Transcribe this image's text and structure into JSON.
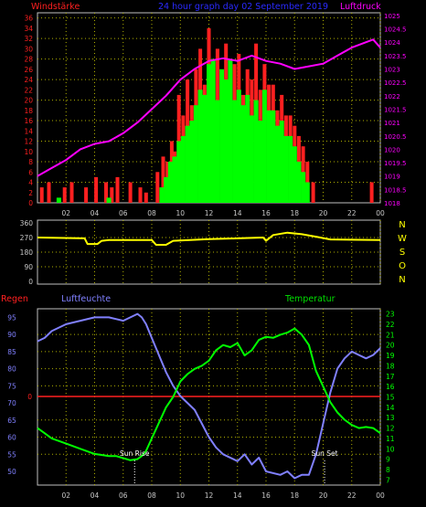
{
  "header": {
    "left_title": "Windstärke",
    "center_title": "24 hour graph day  02 September 2019",
    "right_title": "Luftdruck"
  },
  "colors": {
    "background": "#000000",
    "frame": "#c0c0c0",
    "grid": "#b0b000",
    "red": "#ff2020",
    "green": "#00ff00",
    "magenta": "#ff00ff",
    "yellow": "#ffff00",
    "blue_title": "#2a2aff",
    "humidity": "#8080ff",
    "temp_label": "#00e000",
    "label_grey": "#c8c8c8"
  },
  "x_ticks": [
    "02",
    "04",
    "06",
    "08",
    "10",
    "12",
    "14",
    "16",
    "18",
    "20",
    "22",
    "00"
  ],
  "chart_data": [
    {
      "type": "bar",
      "title": "Windstärke / Luftdruck",
      "y_left_label": "Windstärke",
      "y_left_ticks": [
        "0",
        "2",
        "4",
        "6",
        "8",
        "10",
        "12",
        "14",
        "16",
        "18",
        "20",
        "22",
        "24",
        "26",
        "28",
        "30",
        "32",
        "34",
        "36"
      ],
      "ylim_left": [
        0,
        37
      ],
      "y_right_label": "Luftdruck",
      "y_right_ticks": [
        "1018",
        "1018.5",
        "1019",
        "1019.5",
        "1020",
        "1020.5",
        "1021",
        "1021.5",
        "1022",
        "1022.5",
        "1023",
        "1023.5",
        "1024",
        "1024.5",
        "1025"
      ],
      "ylim_right": [
        1018,
        1025.1
      ],
      "xlim_hours": [
        0,
        24
      ],
      "series": [
        {
          "name": "Windspitzen",
          "color": "red",
          "hours": [
            0.3,
            0.8,
            1.9,
            2.4,
            3.4,
            4.1,
            4.8,
            5.2,
            5.6,
            6.5,
            7.2,
            7.6,
            8.4,
            8.8,
            9.1,
            9.4,
            9.6,
            9.9,
            10.2,
            10.5,
            10.8,
            11.1,
            11.4,
            11.7,
            12.0,
            12.3,
            12.6,
            12.9,
            13.2,
            13.5,
            13.8,
            14.1,
            14.4,
            14.7,
            15.0,
            15.3,
            15.6,
            15.9,
            16.2,
            16.5,
            16.8,
            17.1,
            17.4,
            17.7,
            18.0,
            18.3,
            18.6,
            18.9,
            19.3,
            23.4
          ],
          "values": [
            3,
            4,
            3,
            4,
            3,
            5,
            4,
            3,
            5,
            4,
            3,
            2,
            6,
            9,
            8,
            12,
            10,
            21,
            17,
            24,
            19,
            26,
            30,
            23,
            34,
            27,
            30,
            23,
            31,
            24,
            27,
            29,
            21,
            26,
            24,
            31,
            22,
            27,
            23,
            23,
            18,
            21,
            17,
            17,
            15,
            13,
            11,
            8,
            4,
            4
          ]
        },
        {
          "name": "Windstärke",
          "color": "green",
          "hours": [
            1.5,
            5.0,
            8.7,
            9.0,
            9.3,
            9.6,
            9.9,
            10.2,
            10.5,
            10.8,
            11.1,
            11.4,
            11.7,
            12.0,
            12.3,
            12.6,
            12.9,
            13.2,
            13.5,
            13.8,
            14.1,
            14.4,
            14.7,
            15.0,
            15.3,
            15.6,
            15.9,
            16.2,
            16.5,
            16.8,
            17.1,
            17.4,
            17.7,
            18.0,
            18.3,
            18.6,
            18.9
          ],
          "values": [
            1,
            1,
            3,
            5,
            8,
            9,
            12,
            13,
            15,
            16,
            19,
            22,
            21,
            27,
            28,
            20,
            26,
            24,
            28,
            20,
            22,
            19,
            21,
            17,
            20,
            16,
            22,
            18,
            18,
            15,
            16,
            13,
            13,
            11,
            8,
            6,
            4
          ]
        },
        {
          "name": "Luftdruck",
          "color": "magenta",
          "axis": "right",
          "hours": [
            0,
            1,
            2,
            3,
            4,
            5,
            6,
            7,
            8,
            9,
            10,
            11,
            12,
            13,
            14,
            15,
            16,
            17,
            18,
            19,
            20,
            21,
            22,
            23,
            23.5,
            24
          ],
          "values": [
            1019.0,
            1019.3,
            1019.6,
            1020.0,
            1020.2,
            1020.3,
            1020.6,
            1021.0,
            1021.5,
            1022.0,
            1022.6,
            1023.0,
            1023.3,
            1023.4,
            1023.3,
            1023.5,
            1023.3,
            1023.2,
            1023.0,
            1023.1,
            1023.2,
            1023.5,
            1023.8,
            1024.0,
            1024.1,
            1023.8
          ]
        }
      ]
    },
    {
      "type": "line",
      "title": "Windrichtung",
      "y_ticks": [
        "0",
        "90",
        "180",
        "270",
        "360"
      ],
      "ylim": [
        0,
        360
      ],
      "direction_labels": [
        "N",
        "W",
        "S",
        "O",
        "N"
      ],
      "xlim_hours": [
        0,
        24
      ],
      "series": [
        {
          "name": "Windrichtung",
          "color": "yellow",
          "hours": [
            0,
            3.3,
            3.5,
            4.2,
            4.5,
            5.0,
            8.0,
            8.3,
            9.0,
            9.5,
            12.0,
            14.0,
            15.8,
            16.0,
            16.5,
            17.5,
            18.5,
            19.5,
            20.5,
            24
          ],
          "values": [
            270,
            265,
            230,
            230,
            250,
            255,
            255,
            225,
            225,
            250,
            260,
            265,
            270,
            250,
            285,
            300,
            290,
            275,
            258,
            255
          ]
        }
      ]
    },
    {
      "type": "line",
      "title": "Regen / Luftfeuchte / Temperatur",
      "label_rain": "Regen",
      "label_humidity": "Luftfeuchte",
      "label_temperature": "Temperatur",
      "y_left_ticks": [
        "50",
        "55",
        "60",
        "65",
        "70",
        "75",
        "80",
        "85",
        "90",
        "95"
      ],
      "ylim_left": [
        46,
        97.5
      ],
      "y_right_ticks": [
        "7",
        "8",
        "9",
        "10",
        "11",
        "12",
        "13",
        "14",
        "15",
        "16",
        "17",
        "18",
        "19",
        "20",
        "21",
        "22",
        "23"
      ],
      "ylim_right": [
        6.5,
        23.5
      ],
      "rain_label": "0",
      "annotations": [
        {
          "text": "Sun Rise",
          "hour": 6.8
        },
        {
          "text": "Sun Set",
          "hour": 20.1
        }
      ],
      "xlim_hours": [
        0,
        24
      ],
      "series": [
        {
          "name": "Luftfeuchte",
          "color": "humidity",
          "axis": "left",
          "hours": [
            0,
            0.5,
            1,
            2,
            3,
            4,
            5,
            6,
            6.5,
            7,
            7.3,
            7.6,
            8,
            8.5,
            9,
            9.5,
            10,
            10.5,
            11,
            11.5,
            12,
            12.5,
            13,
            14,
            14.5,
            15,
            15.5,
            16,
            17,
            17.5,
            18,
            18.5,
            19,
            19.5,
            20,
            20.5,
            21,
            21.5,
            22,
            22.5,
            23,
            23.5,
            24
          ],
          "values": [
            88,
            89,
            91,
            93,
            94,
            95,
            95,
            94,
            95,
            96,
            95,
            93,
            89,
            84,
            79,
            75,
            72,
            70,
            68,
            64,
            60,
            57,
            55,
            53,
            55,
            52,
            54,
            50,
            49,
            50,
            48,
            49,
            49,
            55,
            64,
            73,
            80,
            83,
            85,
            84,
            83,
            84,
            86
          ]
        },
        {
          "name": "Temperatur",
          "color": "green",
          "axis": "right",
          "hours": [
            0,
            0.5,
            1,
            2,
            3,
            4,
            5,
            5.5,
            6,
            6.5,
            7,
            7.3,
            7.6,
            8,
            8.5,
            9,
            9.5,
            10,
            10.5,
            11,
            11.5,
            12,
            12.5,
            13,
            13.5,
            14,
            14.5,
            15,
            15.5,
            16,
            16.5,
            17,
            17.5,
            18,
            18.5,
            19,
            19.5,
            20,
            20.5,
            21,
            21.5,
            22,
            22.5,
            23,
            23.5,
            24
          ],
          "values": [
            12,
            11.5,
            11,
            10.5,
            10,
            9.5,
            9.3,
            9.3,
            9.1,
            8.9,
            9,
            9.3,
            9.8,
            11,
            12.5,
            14,
            15,
            16.5,
            17.2,
            17.7,
            18,
            18.5,
            19.5,
            20,
            19.8,
            20.2,
            19,
            19.5,
            20.5,
            20.8,
            20.7,
            21,
            21.2,
            21.6,
            21,
            20,
            17.5,
            16,
            14.5,
            13.5,
            12.8,
            12.3,
            12.0,
            12.1,
            12.0,
            11.5
          ]
        }
      ]
    }
  ]
}
